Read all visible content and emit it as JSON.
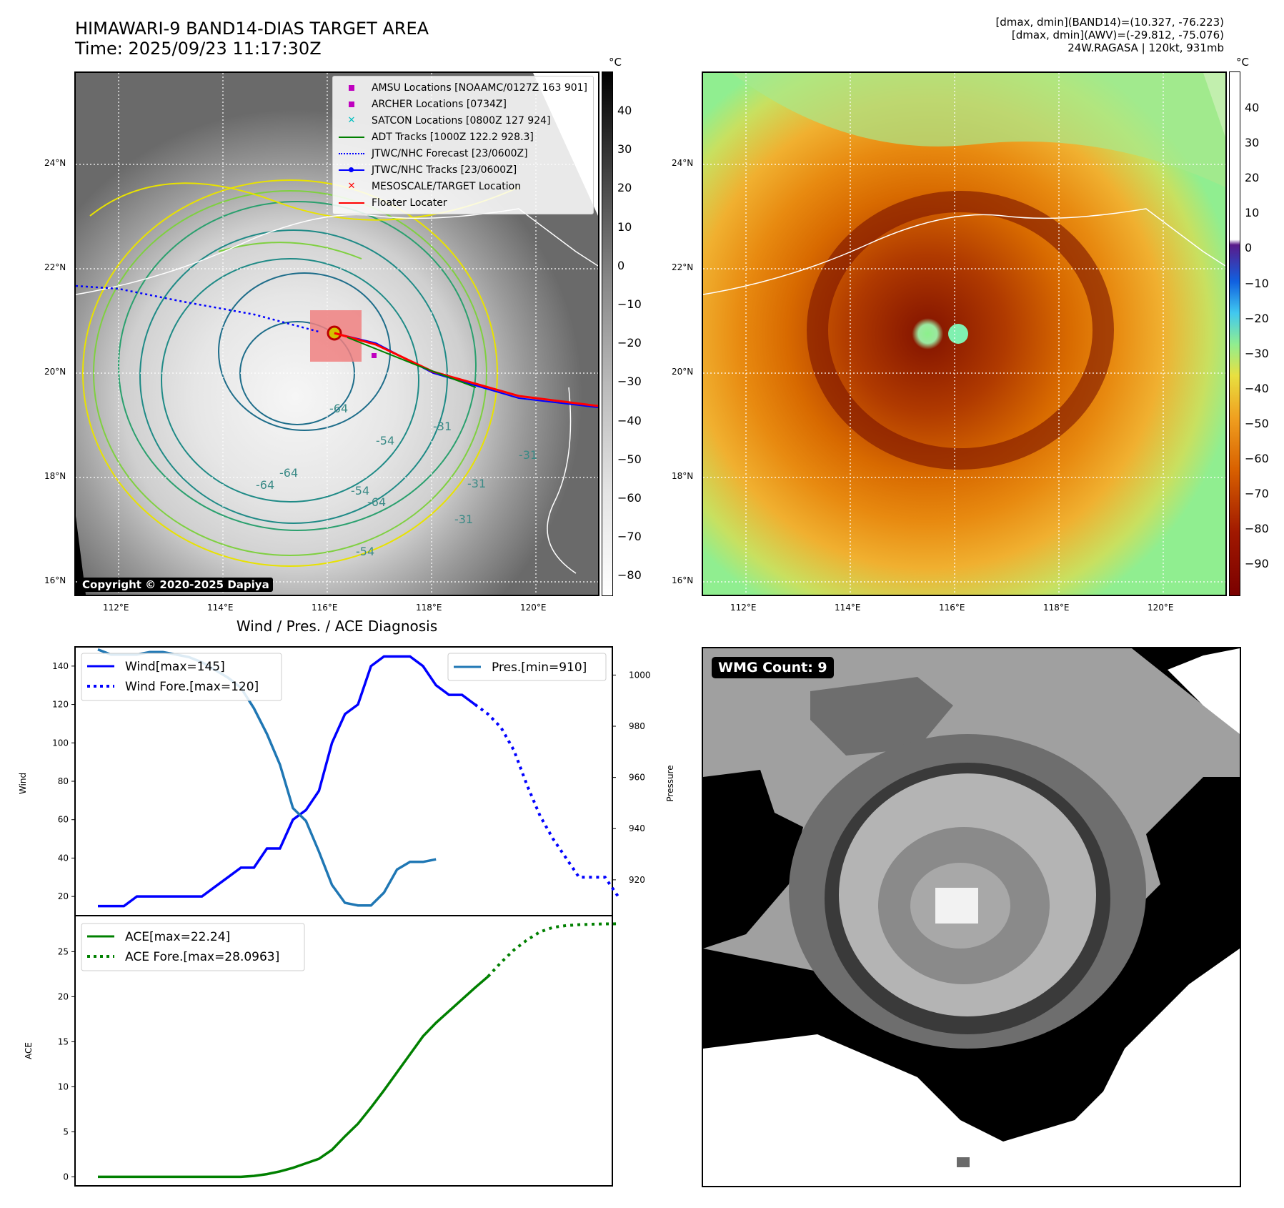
{
  "header": {
    "title_line1": "HIMAWARI-9 BAND14-DIAS TARGET AREA",
    "title_line2": "Time: 2025/09/23 11:17:30Z",
    "info_line1": "[dmax, dmin](BAND14)=(10.327, -76.223)",
    "info_line2": "[dmax, dmin](AWV)=(-29.812, -75.076)",
    "info_line3": "24W.RAGASA | 120kt, 931mb"
  },
  "map": {
    "lat_labels": [
      "24°N",
      "22°N",
      "20°N",
      "18°N",
      "16°N"
    ],
    "lon_labels": [
      "112°E",
      "114°E",
      "116°E",
      "118°E",
      "120°E"
    ],
    "copyright": "Copyright © 2020-2025 Dapiya",
    "contour_labels": [
      "-64",
      "-64",
      "-64",
      "-54",
      "-54",
      "-31",
      "-31",
      "-31",
      "-31",
      "-64",
      "-54"
    ],
    "legend": [
      {
        "label": "AMSU Locations [NOAAMC/0127Z 163 901]",
        "color": "#bf00bf"
      },
      {
        "label": "ARCHER Locations [0734Z]",
        "color": "#bf00bf"
      },
      {
        "label": "SATCON Locations [0800Z 127 924]",
        "color": "#00bfbf"
      },
      {
        "label": "ADT Tracks [1000Z 122.2 928.3]",
        "color": "#008000"
      },
      {
        "label": "JTWC/NHC Forecast [23/0600Z]",
        "color": "#0000ff"
      },
      {
        "label": "JTWC/NHC Tracks [23/0600Z]",
        "color": "#0000ff"
      },
      {
        "label": "MESOSCALE/TARGET Location",
        "color": "#ff0000"
      },
      {
        "label": "Floater Locater",
        "color": "#ff0000"
      }
    ]
  },
  "colorbar_gray": {
    "unit": "°C",
    "ticks": [
      "40",
      "30",
      "20",
      "10",
      "0",
      "−10",
      "−20",
      "−30",
      "−40",
      "−50",
      "−60",
      "−70",
      "−80"
    ]
  },
  "colorbar_awv": {
    "unit": "°C",
    "ticks": [
      "40",
      "30",
      "20",
      "10",
      "0",
      "−10",
      "−20",
      "−30",
      "−40",
      "−50",
      "−60",
      "−70",
      "−80",
      "−90"
    ]
  },
  "wmg": {
    "label": "WMG Count: 9"
  },
  "chart_data": [
    {
      "type": "line",
      "title": "Wind / Pres. / ACE Diagnosis",
      "ylabel": "Wind",
      "y2label": "Pressure",
      "ylim": [
        10,
        150
      ],
      "y2lim": [
        906,
        1011
      ],
      "yticks": [
        "140",
        "120",
        "100",
        "80",
        "60",
        "40",
        "20"
      ],
      "y2ticks": [
        "1000",
        "980",
        "960",
        "940",
        "920"
      ],
      "series": [
        {
          "name": "Wind[max=145]",
          "axis": "left",
          "style": "solid",
          "color": "#0000ff",
          "values": [
            15,
            15,
            15,
            20,
            20,
            20,
            20,
            20,
            20,
            25,
            30,
            35,
            35,
            45,
            45,
            60,
            65,
            75,
            100,
            115,
            120,
            140,
            145,
            145,
            145,
            140,
            130,
            125,
            125,
            120
          ]
        },
        {
          "name": "Wind Fore.[max=120]",
          "axis": "left",
          "style": "dotted",
          "color": "#0000ff",
          "start_index": 29,
          "values": [
            120,
            115,
            108,
            96,
            78,
            62,
            50,
            40,
            30,
            30,
            30,
            20
          ]
        },
        {
          "name": "Pres.[min=910]",
          "axis": "right",
          "style": "solid",
          "color": "#1f77b4",
          "values": [
            1010,
            1008,
            1008,
            1008,
            1009,
            1009,
            1008,
            1007,
            1005,
            1002,
            999,
            995,
            987,
            977,
            965,
            948,
            943,
            931,
            918,
            911,
            910,
            910,
            915,
            924,
            927,
            927,
            928
          ]
        }
      ]
    },
    {
      "type": "line",
      "ylabel": "ACE",
      "ylim": [
        -1,
        29
      ],
      "yticks": [
        "25",
        "20",
        "15",
        "10",
        "5",
        "0"
      ],
      "series": [
        {
          "name": "ACE[max=22.24]",
          "style": "solid",
          "color": "#008000",
          "values": [
            0,
            0,
            0,
            0,
            0,
            0,
            0,
            0,
            0,
            0,
            0,
            0,
            0.1,
            0.3,
            0.6,
            1,
            1.5,
            2,
            3,
            4.5,
            5.9,
            7.7,
            9.6,
            11.6,
            13.6,
            15.6,
            17.1,
            18.4,
            19.7,
            21.0,
            22.24
          ]
        },
        {
          "name": "ACE Fore.[max=28.0963]",
          "style": "dotted",
          "color": "#008000",
          "start_index": 30,
          "values": [
            22.24,
            23.8,
            25.2,
            26.3,
            27.2,
            27.7,
            27.9,
            28.0,
            28.05,
            28.09,
            28.0963
          ]
        }
      ]
    }
  ]
}
